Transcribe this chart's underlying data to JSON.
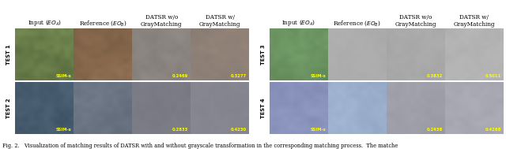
{
  "fig_width": 6.4,
  "fig_height": 1.89,
  "dpi": 100,
  "bg_color": "#ffffff",
  "header_labels": [
    "Input ($EO_A$)",
    "Reference ($EO_B$)",
    "DATSR w/o\nGrayMatching",
    "DATSR w/\nGrayMatching"
  ],
  "caption": "Fig. 2.   Visualization of matching results of DATSR with and without grayscale transformation in the corresponding matching process.  The matche",
  "caption_fontsize": 4.8,
  "header_fontsize": 5.2,
  "score_fontsize": 3.8,
  "row_label_fontsize": 4.8,
  "scores": [
    [
      [
        "SSIM-s",
        "",
        "0.2469",
        "0.3277"
      ],
      [
        "SSIM-s",
        "",
        "0.3832",
        "0.5011"
      ]
    ],
    [
      [
        "SSIM-s",
        "",
        "0.2833",
        "0.4230"
      ],
      [
        "SSIM-s",
        "",
        "0.2438",
        "0.4268"
      ]
    ]
  ],
  "red_cols": [
    0,
    3
  ],
  "row_labels": [
    [
      "TEST 1",
      "TEST 2"
    ],
    [
      "TEST 3",
      "TEST 4"
    ]
  ],
  "cell_seeds": [
    [
      [
        11,
        22,
        33,
        44
      ],
      [
        55,
        66,
        77,
        88
      ]
    ],
    [
      [
        99,
        110,
        121,
        132
      ],
      [
        143,
        154,
        165,
        176
      ]
    ]
  ],
  "cell_palettes": [
    [
      [
        [
          [
            80,
            110,
            60
          ],
          [
            100,
            130,
            80
          ],
          [
            110,
            120,
            70
          ],
          [
            90,
            100,
            60
          ]
        ],
        [
          [
            120,
            90,
            60
          ],
          [
            140,
            100,
            70
          ],
          [
            130,
            110,
            80
          ],
          [
            110,
            90,
            70
          ]
        ],
        [
          [
            130,
            125,
            120
          ],
          [
            140,
            135,
            130
          ],
          [
            135,
            130,
            125
          ],
          [
            125,
            120,
            115
          ]
        ],
        [
          [
            140,
            125,
            115
          ],
          [
            145,
            130,
            120
          ],
          [
            138,
            128,
            118
          ],
          [
            132,
            122,
            112
          ]
        ]
      ],
      [
        [
          [
            100,
            140,
            90
          ],
          [
            110,
            150,
            100
          ],
          [
            95,
            130,
            85
          ],
          [
            105,
            145,
            95
          ]
        ],
        [
          [
            170,
            170,
            170
          ],
          [
            175,
            175,
            175
          ],
          [
            168,
            168,
            168
          ],
          [
            172,
            172,
            172
          ]
        ],
        [
          [
            165,
            165,
            165
          ],
          [
            170,
            170,
            170
          ],
          [
            160,
            160,
            160
          ],
          [
            168,
            168,
            168
          ]
        ],
        [
          [
            175,
            175,
            175
          ],
          [
            180,
            180,
            180
          ],
          [
            170,
            170,
            170
          ],
          [
            178,
            178,
            178
          ]
        ]
      ]
    ],
    [
      [
        [
          [
            60,
            80,
            100
          ],
          [
            70,
            90,
            110
          ],
          [
            65,
            85,
            105
          ],
          [
            75,
            95,
            115
          ]
        ],
        [
          [
            100,
            110,
            125
          ],
          [
            110,
            120,
            135
          ],
          [
            105,
            115,
            130
          ],
          [
            95,
            105,
            120
          ]
        ],
        [
          [
            120,
            120,
            130
          ],
          [
            125,
            125,
            135
          ],
          [
            118,
            118,
            128
          ],
          [
            122,
            122,
            132
          ]
        ],
        [
          [
            130,
            130,
            140
          ],
          [
            135,
            135,
            145
          ],
          [
            128,
            128,
            138
          ],
          [
            132,
            132,
            142
          ]
        ]
      ],
      [
        [
          [
            130,
            140,
            180
          ],
          [
            140,
            150,
            190
          ],
          [
            125,
            135,
            175
          ],
          [
            135,
            145,
            185
          ]
        ],
        [
          [
            150,
            170,
            200
          ],
          [
            160,
            180,
            210
          ],
          [
            145,
            165,
            195
          ],
          [
            155,
            175,
            205
          ]
        ],
        [
          [
            155,
            155,
            165
          ],
          [
            160,
            160,
            170
          ],
          [
            150,
            150,
            160
          ],
          [
            158,
            158,
            168
          ]
        ],
        [
          [
            165,
            165,
            175
          ],
          [
            170,
            170,
            180
          ],
          [
            160,
            160,
            170
          ],
          [
            168,
            168,
            178
          ]
        ]
      ]
    ]
  ]
}
